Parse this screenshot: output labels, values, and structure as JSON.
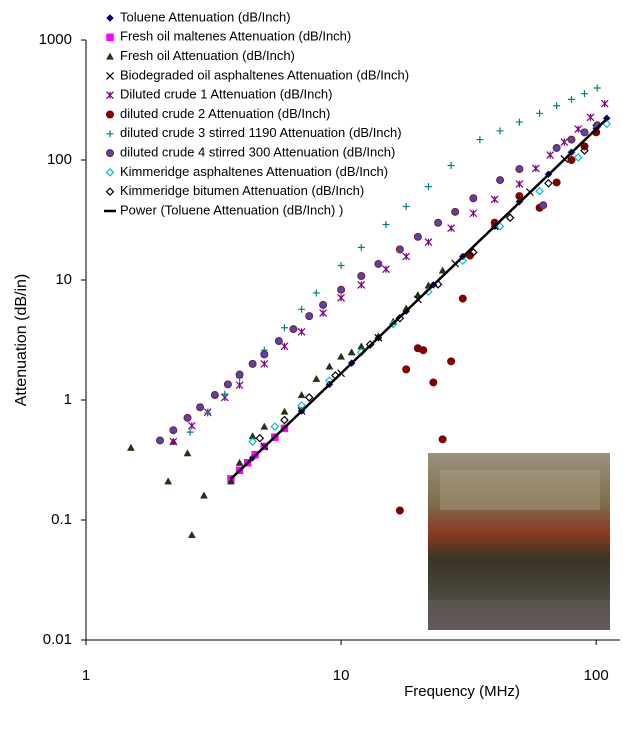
{
  "chart_data": {
    "type": "scatter",
    "xscale": "log",
    "yscale": "log",
    "xlabel": "Frequency (MHz)",
    "ylabel": "Attenuation (dB/in)",
    "xlim": [
      1,
      124
    ],
    "ylim": [
      0.01,
      1000
    ],
    "xticks": [
      1,
      10,
      100
    ],
    "yticks": [
      0.01,
      0.1,
      1,
      10,
      100,
      1000
    ],
    "series": [
      {
        "name": "Toluene Attenuation (dB/Inch)",
        "color": "#000080",
        "marker": "diamond",
        "x": [
          3.7,
          4.5,
          5.5,
          7,
          9,
          11,
          14,
          18,
          23,
          30,
          40,
          50,
          65,
          80,
          100,
          110
        ],
        "values": [
          0.22,
          0.33,
          0.49,
          0.81,
          1.35,
          2.03,
          3.3,
          5.5,
          9.1,
          15.7,
          28,
          45,
          76,
          116,
          184,
          223
        ]
      },
      {
        "name": "Fresh oil maltenes Attenuation (dB/Inch)",
        "color": "#ff00ff",
        "marker": "square",
        "x": [
          3.7,
          4,
          4.3,
          4.6,
          5,
          5.5,
          6
        ],
        "values": [
          0.22,
          0.26,
          0.3,
          0.35,
          0.41,
          0.49,
          0.58
        ]
      },
      {
        "name": "Fresh oil Attenuation (dB/Inch)",
        "color": "#213515",
        "marker": "triangle",
        "x": [
          1.5,
          2.1,
          2.2,
          2.5,
          2.6,
          2.9,
          3.7,
          4,
          4.5,
          5,
          6,
          7,
          8,
          9,
          10,
          11,
          12,
          14,
          16,
          18,
          20,
          22,
          25
        ],
        "values": [
          0.4,
          0.21,
          0.45,
          0.36,
          0.075,
          0.16,
          0.21,
          0.3,
          0.5,
          0.6,
          0.8,
          1.1,
          1.5,
          1.9,
          2.3,
          2.5,
          2.8,
          3.4,
          4.5,
          5.8,
          7.5,
          9,
          12
        ]
      },
      {
        "name": "Biodegraded oil asphaltenes Attenuation (dB/Inch)",
        "color": "#000000",
        "marker": "x",
        "x": [
          5,
          7,
          10,
          14,
          20,
          28,
          40,
          55,
          75,
          100
        ],
        "values": [
          0.41,
          0.81,
          1.67,
          3.3,
          6.9,
          13.7,
          28,
          54,
          102,
          184
        ]
      },
      {
        "name": "Diluted crude 1 Attenuation (dB/Inch)",
        "color": "#800080",
        "marker": "asterisk",
        "x": [
          2.2,
          2.6,
          3,
          3.5,
          4,
          5,
          6,
          7,
          8.5,
          10,
          12,
          15,
          18,
          22,
          27,
          33,
          40,
          50,
          58,
          66,
          75,
          85,
          95,
          108
        ],
        "values": [
          0.45,
          0.61,
          0.79,
          1.05,
          1.33,
          2,
          2.8,
          3.7,
          5.3,
          7.1,
          9.1,
          12.3,
          15.7,
          20.7,
          27,
          36,
          47,
          63,
          85,
          110,
          141,
          181,
          227,
          295
        ]
      },
      {
        "name": "diluted crude 2 Attenuation (dB/Inch)",
        "color": "#800000",
        "marker": "circle",
        "x": [
          17,
          18,
          20,
          21,
          23,
          25,
          27,
          30,
          32,
          40,
          50,
          60,
          70,
          80,
          90,
          100
        ],
        "values": [
          0.12,
          1.8,
          2.7,
          2.6,
          1.4,
          0.47,
          2.1,
          7,
          16,
          30,
          50,
          40,
          65,
          100,
          130,
          170
        ]
      },
      {
        "name": "diluted crude 3 stirred 1190 Attenuation (dB/Inch)",
        "color": "#008080",
        "marker": "plus",
        "x": [
          2.56,
          3,
          3.5,
          4,
          5,
          6,
          7,
          8,
          10,
          12,
          15,
          18,
          22,
          27,
          35,
          42,
          50,
          60,
          70,
          80,
          90,
          101
        ],
        "values": [
          0.54,
          0.78,
          1.12,
          1.53,
          2.6,
          4,
          5.7,
          7.8,
          13.2,
          18.7,
          29,
          41,
          60,
          90,
          148,
          175,
          207,
          245,
          283,
          320,
          357,
          398
        ]
      },
      {
        "name": "diluted crude 4 stirred 300 Attenuation (dB/Inch)",
        "color": "#4848b8",
        "edgecolor": "#8b1a1a",
        "marker": "circle",
        "x": [
          1.95,
          2.2,
          2.5,
          2.8,
          3.2,
          3.6,
          4,
          4.5,
          5,
          5.7,
          6.5,
          7.5,
          8.5,
          10,
          12,
          14,
          17,
          20,
          24,
          28,
          33,
          42,
          50,
          62,
          70,
          80,
          90,
          101
        ],
        "values": [
          0.46,
          0.56,
          0.71,
          0.87,
          1.1,
          1.35,
          1.63,
          2,
          2.4,
          3.1,
          3.9,
          5,
          6.2,
          8.3,
          10.8,
          13.6,
          18,
          22.9,
          30,
          37,
          48,
          68,
          84,
          42,
          126,
          148,
          170,
          195
        ]
      },
      {
        "name": "Kimmeridge asphaltenes Attenuation (dB/Inch)",
        "color": "#00c0c0",
        "marker": "diamond-open",
        "x": [
          4.5,
          5.5,
          7,
          9,
          12,
          16,
          22,
          30,
          42,
          60,
          85,
          110
        ],
        "values": [
          0.45,
          0.6,
          0.9,
          1.45,
          2.5,
          4.3,
          8,
          14.5,
          28,
          55,
          105,
          200
        ]
      },
      {
        "name": "Kimmeridge bitumen Attenuation (dB/Inch)",
        "color": "#000000",
        "marker": "diamond-open",
        "x": [
          4.8,
          6,
          7.5,
          9.5,
          13,
          17,
          24,
          33,
          46,
          65,
          90
        ],
        "values": [
          0.48,
          0.68,
          1.05,
          1.6,
          2.9,
          4.8,
          9.2,
          17,
          33,
          64,
          120
        ]
      },
      {
        "name": "Power (Toluene Attenuation (dB/Inch) )",
        "color": "#000000",
        "marker": "line",
        "x": [
          3.7,
          110
        ],
        "values": [
          0.22,
          220
        ]
      }
    ]
  }
}
